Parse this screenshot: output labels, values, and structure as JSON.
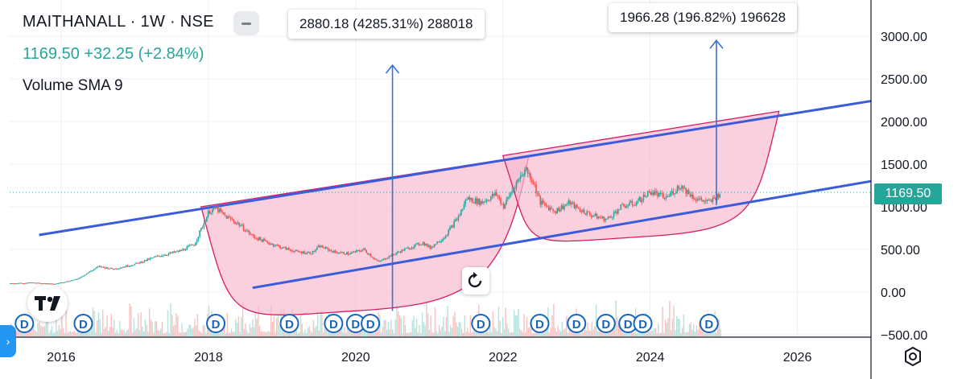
{
  "header": {
    "symbol": "MAITHANALL · 1W · NSE",
    "price": "1169.50  +32.25 (+2.84%)",
    "indicator": "Volume SMA 9"
  },
  "callouts": [
    {
      "text": "2880.18 (4285.31%) 288018"
    },
    {
      "text": "1966.28 (196.82%) 196628"
    }
  ],
  "last_price_label": "1169.50",
  "colors": {
    "up": "#26a69a",
    "down": "#ef5350",
    "channel": "#3b5bdb",
    "cup_fill": "#f8bbd0",
    "cup_stroke": "#d81b60",
    "arrow": "#3b6fd4",
    "accent": "#2196f3"
  },
  "icons": [
    "tradingview-logo-icon",
    "reset-icon",
    "gear-icon",
    "chevron-right-icon",
    "collapse-icon"
  ],
  "chart_data": {
    "type": "candlestick",
    "x_ticks": [
      "2016",
      "2018",
      "2020",
      "2022",
      "2024",
      "2026"
    ],
    "y_ticks": [
      "3000.00",
      "2500.00",
      "2000.00",
      "1500.00",
      "1000.00",
      "500.00",
      "0.00",
      "−500.00"
    ],
    "ylim": [
      -500,
      3000
    ],
    "xlim": [
      2015.3,
      2027.0
    ],
    "last_price": 1169.5,
    "grid": true,
    "price_path": [
      [
        2015.3,
        100
      ],
      [
        2015.6,
        110
      ],
      [
        2015.9,
        95
      ],
      [
        2016.2,
        150
      ],
      [
        2016.5,
        300
      ],
      [
        2016.7,
        270
      ],
      [
        2017.0,
        330
      ],
      [
        2017.3,
        420
      ],
      [
        2017.6,
        480
      ],
      [
        2017.8,
        560
      ],
      [
        2018.0,
        950
      ],
      [
        2018.1,
        980
      ],
      [
        2018.2,
        900
      ],
      [
        2018.4,
        800
      ],
      [
        2018.6,
        650
      ],
      [
        2018.8,
        580
      ],
      [
        2019.0,
        520
      ],
      [
        2019.2,
        470
      ],
      [
        2019.4,
        460
      ],
      [
        2019.5,
        540
      ],
      [
        2019.7,
        470
      ],
      [
        2019.9,
        450
      ],
      [
        2020.1,
        500
      ],
      [
        2020.3,
        350
      ],
      [
        2020.4,
        400
      ],
      [
        2020.6,
        480
      ],
      [
        2020.9,
        580
      ],
      [
        2021.0,
        520
      ],
      [
        2021.2,
        650
      ],
      [
        2021.4,
        900
      ],
      [
        2021.5,
        1100
      ],
      [
        2021.7,
        1050
      ],
      [
        2021.9,
        1150
      ],
      [
        2022.0,
        1000
      ],
      [
        2022.15,
        1250
      ],
      [
        2022.3,
        1450
      ],
      [
        2022.4,
        1300
      ],
      [
        2022.5,
        1050
      ],
      [
        2022.7,
        950
      ],
      [
        2022.9,
        1050
      ],
      [
        2023.0,
        980
      ],
      [
        2023.2,
        900
      ],
      [
        2023.4,
        850
      ],
      [
        2023.6,
        1000
      ],
      [
        2023.8,
        1050
      ],
      [
        2024.0,
        1180
      ],
      [
        2024.2,
        1100
      ],
      [
        2024.4,
        1250
      ],
      [
        2024.6,
        1100
      ],
      [
        2024.8,
        1050
      ],
      [
        2024.95,
        1169.5
      ]
    ],
    "dividend_dates": [
      2015.5,
      2016.3,
      2018.1,
      2019.1,
      2019.7,
      2020.0,
      2020.2,
      2021.7,
      2022.5,
      2023.0,
      2023.4,
      2023.7,
      2023.9,
      2024.8
    ],
    "dividend_label": "D",
    "channel_upper": [
      [
        2015.7,
        670
      ],
      [
        2027.0,
        2240
      ]
    ],
    "channel_lower": [
      [
        2018.6,
        50
      ],
      [
        2027.0,
        1300
      ]
    ],
    "cup_left": {
      "rim_left": [
        2017.9,
        1000
      ],
      "bottom": [
        2020.0,
        -220
      ],
      "rim_right": [
        2022.35,
        1600
      ]
    },
    "cup_right": {
      "rim_left": [
        2022.0,
        1600
      ],
      "bottom": [
        2023.9,
        650
      ],
      "rim_right": [
        2025.75,
        2120
      ]
    },
    "target_arrows": [
      {
        "x": 2020.5,
        "from": -220,
        "to": 2660
      },
      {
        "x": 2024.9,
        "from": 1020,
        "to": 2950
      }
    ]
  }
}
